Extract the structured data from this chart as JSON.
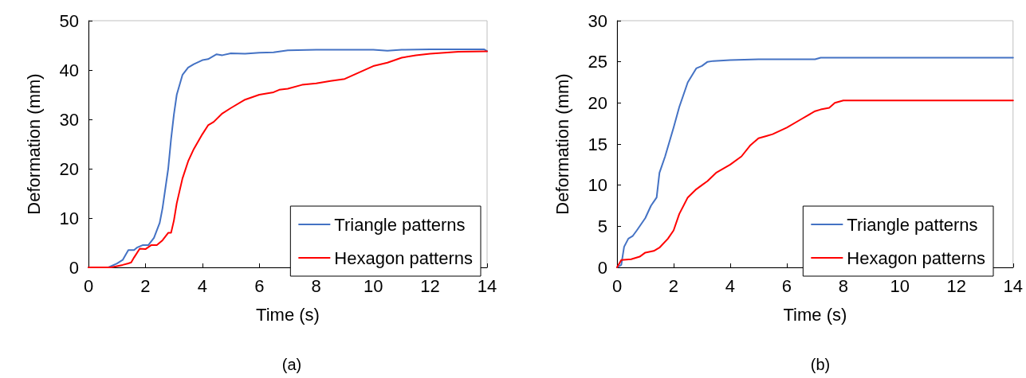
{
  "chart_data": [
    {
      "type": "line",
      "title": "(a)",
      "xlabel": "Time (s)",
      "ylabel": "Deformation (mm)",
      "xlim": [
        0,
        14
      ],
      "xticks": [
        0,
        2,
        4,
        6,
        8,
        10,
        12,
        14
      ],
      "ylim": [
        0,
        50
      ],
      "yticks": [
        0,
        10,
        20,
        30,
        40,
        50
      ],
      "grid": false,
      "legend": "bottom right",
      "marker": "none",
      "line_style": "solid",
      "series": [
        {
          "name": "Triangle patterns",
          "color": "#4472c4",
          "x": [
            0,
            0.7,
            1,
            1.2,
            1.4,
            1.6,
            1.7,
            1.9,
            2.1,
            2.3,
            2.5,
            2.6,
            2.8,
            2.9,
            3,
            3.1,
            3.3,
            3.5,
            3.7,
            4,
            4.2,
            4.5,
            4.7,
            5,
            5.5,
            6,
            6.5,
            7,
            8,
            9,
            10,
            10.5,
            11,
            12,
            13,
            13.9,
            14
          ],
          "values": [
            0,
            0,
            0.8,
            1.5,
            3.5,
            3.5,
            4,
            4.5,
            4.5,
            6,
            9,
            12,
            20,
            26,
            31,
            35,
            39,
            40.5,
            41.2,
            42,
            42.2,
            43.2,
            43,
            43.4,
            43.3,
            43.5,
            43.6,
            44,
            44.1,
            44.1,
            44.1,
            43.9,
            44.1,
            44.2,
            44.2,
            44.2,
            43.8
          ]
        },
        {
          "name": "Hexagon patterns",
          "color": "#ff0000",
          "x": [
            0,
            0.8,
            1.2,
            1.4,
            1.5,
            1.6,
            1.8,
            2,
            2.2,
            2.4,
            2.6,
            2.8,
            2.9,
            3,
            3.1,
            3.3,
            3.5,
            3.7,
            4,
            4.2,
            4.4,
            4.7,
            5,
            5.5,
            6,
            6.5,
            6.7,
            7,
            7.5,
            8,
            8.5,
            9,
            9.5,
            10,
            10.5,
            11,
            11.5,
            12,
            13,
            14
          ],
          "values": [
            0,
            0,
            0.5,
            0.8,
            1,
            2,
            3.8,
            3.7,
            4.5,
            4.5,
            5.5,
            7,
            7,
            9.5,
            13,
            18,
            21.5,
            24,
            27,
            28.8,
            29.5,
            31.2,
            32.3,
            34,
            35,
            35.5,
            36,
            36.2,
            37,
            37.3,
            37.8,
            38.2,
            39.5,
            40.8,
            41.5,
            42.5,
            43,
            43.3,
            43.7,
            43.8
          ]
        }
      ]
    },
    {
      "type": "line",
      "title": "(b)",
      "xlabel": "Time (s)",
      "ylabel": "Deformation (mm)",
      "xlim": [
        0,
        14
      ],
      "xticks": [
        0,
        2,
        4,
        6,
        8,
        10,
        12,
        14
      ],
      "ylim": [
        0,
        30
      ],
      "yticks": [
        0,
        5,
        10,
        15,
        20,
        25,
        30
      ],
      "grid": false,
      "legend": "bottom right",
      "marker": "none",
      "line_style": "solid",
      "series": [
        {
          "name": "Triangle patterns",
          "color": "#4472c4",
          "x": [
            0,
            0.15,
            0.25,
            0.4,
            0.55,
            0.7,
            1,
            1.2,
            1.4,
            1.5,
            1.7,
            2,
            2.2,
            2.5,
            2.8,
            3,
            3.2,
            3.4,
            4,
            5,
            7,
            7.2,
            14
          ],
          "values": [
            0,
            0.3,
            2.5,
            3.5,
            3.8,
            4.5,
            6,
            7.5,
            8.5,
            11.5,
            13.5,
            17,
            19.5,
            22.5,
            24.2,
            24.5,
            25,
            25.1,
            25.2,
            25.3,
            25.3,
            25.5,
            25.5
          ]
        },
        {
          "name": "Hexagon patterns",
          "color": "#ff0000",
          "x": [
            0,
            0.15,
            0.5,
            0.8,
            1,
            1.3,
            1.5,
            1.8,
            2,
            2.2,
            2.5,
            2.8,
            3,
            3.2,
            3.5,
            4,
            4.4,
            4.7,
            5,
            5.3,
            5.5,
            6,
            6.5,
            7,
            7.2,
            7.5,
            7.7,
            8,
            14
          ],
          "values": [
            0,
            0.9,
            1,
            1.3,
            1.8,
            2,
            2.4,
            3.5,
            4.5,
            6.5,
            8.5,
            9.5,
            10,
            10.5,
            11.5,
            12.5,
            13.5,
            14.8,
            15.7,
            16,
            16.2,
            17,
            18,
            19,
            19.2,
            19.4,
            20,
            20.3,
            20.3
          ]
        }
      ]
    }
  ]
}
